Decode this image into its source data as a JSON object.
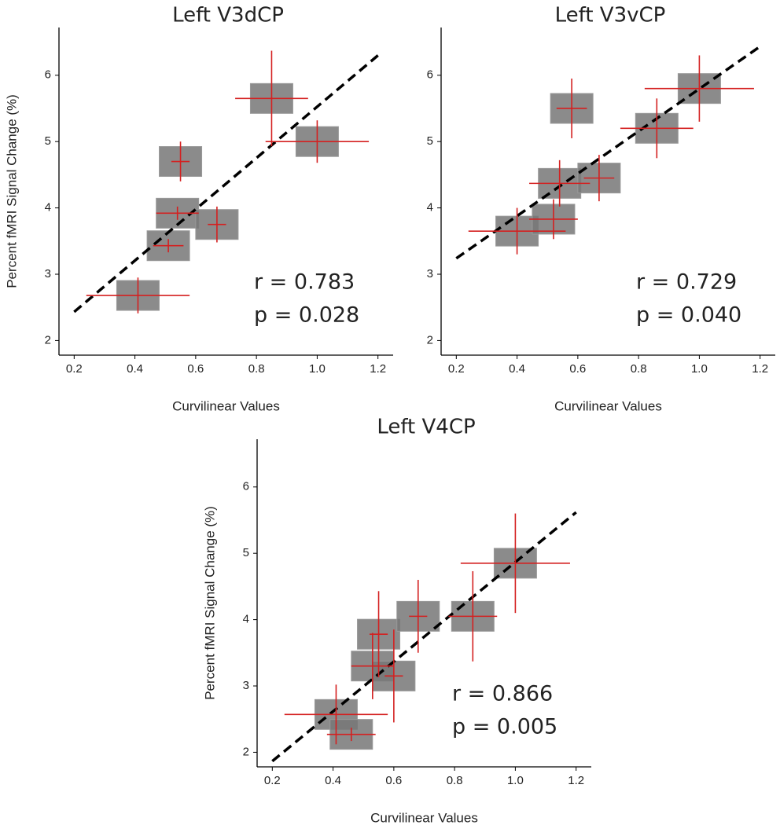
{
  "chart_data": [
    {
      "type": "scatter",
      "title": "Left V3dCP",
      "xlabel": "Curvilinear Values",
      "ylabel": "Percent fMRI Signal Change (%)",
      "x": [
        0.41,
        0.51,
        0.54,
        0.67,
        0.55,
        0.85,
        1.0
      ],
      "values": [
        2.68,
        3.43,
        3.92,
        3.75,
        4.7,
        5.65,
        5.0
      ],
      "xerr": [
        0.17,
        0.05,
        0.07,
        0.03,
        0.03,
        0.12,
        0.17
      ],
      "yerr": [
        0.27,
        0.1,
        0.1,
        0.27,
        0.3,
        0.72,
        0.32
      ],
      "annotations": [
        "r = 0.783",
        "p = 0.028"
      ],
      "xlim": [
        0.15,
        1.25
      ],
      "ylim": [
        1.78,
        6.72
      ],
      "xticks": [
        0.2,
        0.4,
        0.6,
        0.8,
        {
          "value": 1,
          "label": "1.0"
        },
        1.2
      ],
      "yticks": [
        2,
        3,
        4,
        5,
        6
      ],
      "marker_color": "#777777",
      "error_color": "#d42020",
      "fit_line": true
    },
    {
      "type": "scatter",
      "title": "Left V3vCP",
      "xlabel": "Curvilinear Values",
      "x": [
        0.4,
        0.52,
        0.54,
        0.67,
        0.58,
        0.86,
        1.0
      ],
      "values": [
        3.65,
        3.83,
        4.37,
        4.45,
        5.5,
        5.2,
        5.8
      ],
      "xerr": [
        0.16,
        0.08,
        0.1,
        0.05,
        0.05,
        0.12,
        0.18
      ],
      "yerr": [
        0.35,
        0.3,
        0.35,
        0.35,
        0.45,
        0.45,
        0.5
      ],
      "annotations": [
        "r = 0.729",
        "p = 0.040"
      ],
      "xlim": [
        0.15,
        1.25
      ],
      "ylim": [
        1.78,
        6.72
      ],
      "xticks": [
        0.2,
        0.4,
        0.6,
        0.8,
        {
          "value": 1,
          "label": "1.0"
        },
        1.2
      ],
      "yticks": [
        2,
        3,
        4,
        5,
        6
      ],
      "marker_color": "#777777",
      "error_color": "#d42020",
      "fit_line": true
    },
    {
      "type": "scatter",
      "title": "Left V4CP",
      "xlabel": "Curvilinear Values",
      "ylabel": "Percent fMRI Signal Change (%)",
      "x": [
        0.41,
        0.46,
        0.53,
        0.6,
        0.55,
        0.68,
        0.86,
        1.0
      ],
      "values": [
        2.57,
        2.27,
        3.3,
        3.15,
        3.78,
        4.05,
        4.05,
        4.85
      ],
      "xerr": [
        0.17,
        0.08,
        0.07,
        0.03,
        0.03,
        0.03,
        0.08,
        0.18
      ],
      "yerr": [
        0.45,
        0.1,
        0.5,
        0.7,
        0.65,
        0.55,
        0.68,
        0.75
      ],
      "annotations": [
        "r = 0.866",
        "p = 0.005"
      ],
      "xlim": [
        0.15,
        1.25
      ],
      "ylim": [
        1.78,
        6.72
      ],
      "xticks": [
        0.2,
        0.4,
        0.6,
        0.8,
        {
          "value": 1,
          "label": "1.0"
        },
        1.2
      ],
      "yticks": [
        2,
        3,
        4,
        5,
        6
      ],
      "marker_color": "#777777",
      "error_color": "#d42020",
      "fit_line": true
    }
  ]
}
